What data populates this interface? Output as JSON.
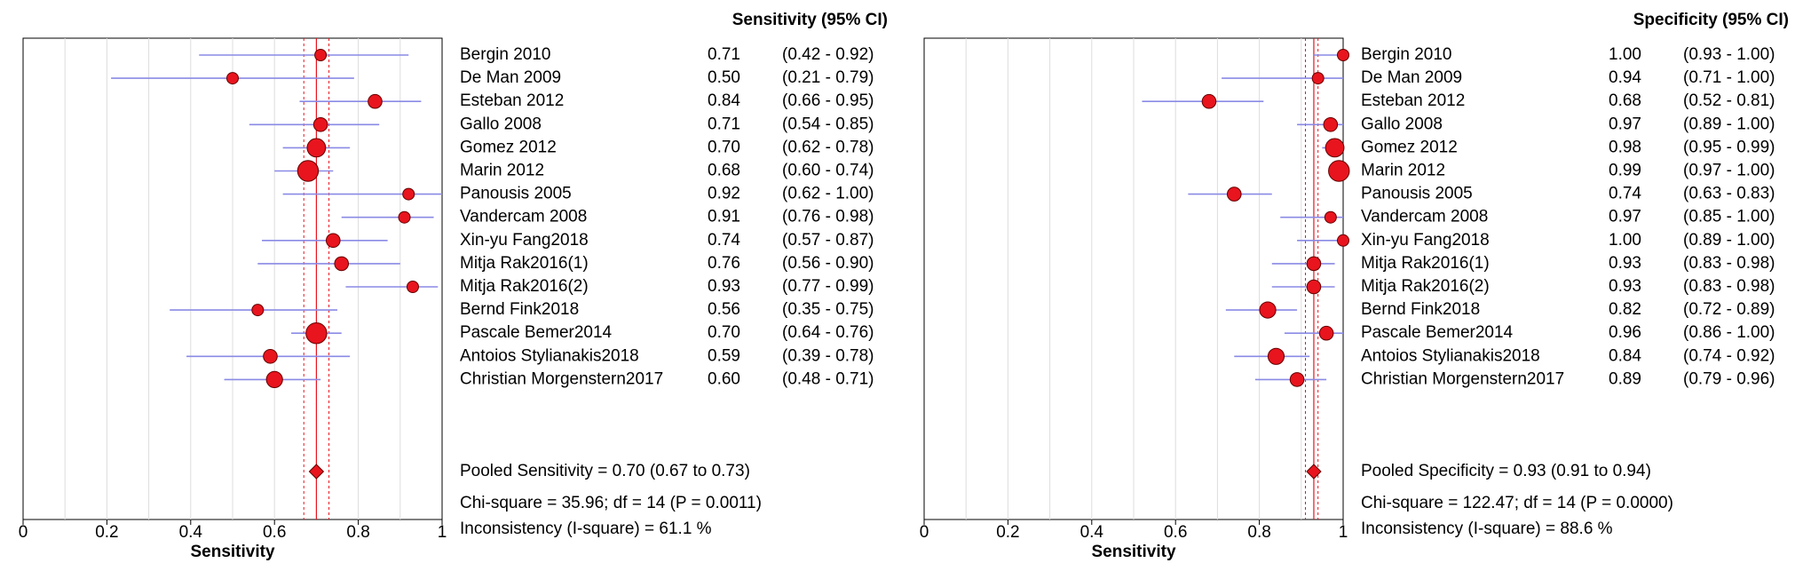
{
  "chart_data": [
    {
      "type": "forest",
      "title": "Sensitivity (95% CI)",
      "xlabel": "Sensitivity",
      "categories": [
        "Bergin 2010",
        "De Man 2009",
        "Esteban 2012",
        "Gallo 2008",
        "Gomez 2012",
        "Marin 2012",
        "Panousis 2005",
        "Vandercam 2008",
        "Xin-yu Fang2018",
        "Mitja Rak2016(1)",
        "Mitja Rak2016(2)",
        "Bernd Fink2018",
        "Pascale Bemer2014",
        "Antoios Stylianakis2018",
        "Christian Morgenstern2017"
      ],
      "values": [
        0.71,
        0.5,
        0.84,
        0.71,
        0.7,
        0.68,
        0.92,
        0.91,
        0.74,
        0.76,
        0.93,
        0.56,
        0.7,
        0.59,
        0.6
      ],
      "value_labels": [
        "0.71",
        "0.50",
        "0.84",
        "0.71",
        "0.70",
        "0.68",
        "0.92",
        "0.91",
        "0.74",
        "0.76",
        "0.93",
        "0.56",
        "0.70",
        "0.59",
        "0.60"
      ],
      "lower": [
        0.42,
        0.21,
        0.66,
        0.54,
        0.62,
        0.6,
        0.62,
        0.76,
        0.57,
        0.56,
        0.77,
        0.35,
        0.64,
        0.39,
        0.48
      ],
      "upper": [
        0.92,
        0.79,
        0.95,
        0.85,
        0.78,
        0.74,
        1.0,
        0.98,
        0.87,
        0.9,
        0.99,
        0.75,
        0.76,
        0.78,
        0.71
      ],
      "ci_labels": [
        "(0.42 - 0.92)",
        "(0.21 - 0.79)",
        "(0.66 - 0.95)",
        "(0.54 - 0.85)",
        "(0.62 - 0.78)",
        "(0.60 - 0.74)",
        "(0.62 - 1.00)",
        "(0.76 - 0.98)",
        "(0.57 - 0.87)",
        "(0.56 - 0.90)",
        "(0.77 - 0.99)",
        "(0.35 - 0.75)",
        "(0.64 - 0.76)",
        "(0.39 - 0.78)",
        "(0.48 - 0.71)"
      ],
      "sizes": [
        5,
        5,
        6,
        6,
        8,
        9,
        5,
        5,
        6,
        6,
        5,
        5,
        9,
        6,
        7
      ],
      "pooled": {
        "value": 0.7,
        "lower": 0.67,
        "upper": 0.73
      },
      "annotations": [
        "Pooled Sensitivity = 0.70 (0.67 to 0.73)",
        "Chi-square = 35.96; df =  14 (P = 0.0011)",
        "Inconsistency (I-square) = 61.1 %"
      ],
      "xlim": [
        0,
        1
      ],
      "xticks": [
        0,
        0.2,
        0.4,
        0.6,
        0.8,
        1
      ],
      "grid": true,
      "marker_color": "#e8141e",
      "ci_color": "#8a8ae6"
    },
    {
      "type": "forest",
      "title": "Specificity (95% CI)",
      "xlabel": "Sensitivity",
      "categories": [
        "Bergin 2010",
        "De Man 2009",
        "Esteban 2012",
        "Gallo 2008",
        "Gomez 2012",
        "Marin 2012",
        "Panousis 2005",
        "Vandercam 2008",
        "Xin-yu Fang2018",
        "Mitja Rak2016(1)",
        "Mitja Rak2016(2)",
        "Bernd Fink2018",
        "Pascale Bemer2014",
        "Antoios Stylianakis2018",
        "Christian Morgenstern2017"
      ],
      "values": [
        1.0,
        0.94,
        0.68,
        0.97,
        0.98,
        0.99,
        0.74,
        0.97,
        1.0,
        0.93,
        0.93,
        0.82,
        0.96,
        0.84,
        0.89
      ],
      "value_labels": [
        "1.00",
        "0.94",
        "0.68",
        "0.97",
        "0.98",
        "0.99",
        "0.74",
        "0.97",
        "1.00",
        "0.93",
        "0.93",
        "0.82",
        "0.96",
        "0.84",
        "0.89"
      ],
      "lower": [
        0.93,
        0.71,
        0.52,
        0.89,
        0.95,
        0.97,
        0.63,
        0.85,
        0.89,
        0.83,
        0.83,
        0.72,
        0.86,
        0.74,
        0.79
      ],
      "upper": [
        1.0,
        1.0,
        0.81,
        1.0,
        0.99,
        1.0,
        0.83,
        1.0,
        1.0,
        0.98,
        0.98,
        0.89,
        1.0,
        0.92,
        0.96
      ],
      "ci_labels": [
        "(0.93 - 1.00)",
        "(0.71 - 1.00)",
        "(0.52 - 0.81)",
        "(0.89 - 1.00)",
        "(0.95 - 0.99)",
        "(0.97 - 1.00)",
        "(0.63 - 0.83)",
        "(0.85 - 1.00)",
        "(0.89 - 1.00)",
        "(0.83 - 0.98)",
        "(0.83 - 0.98)",
        "(0.72 - 0.89)",
        "(0.86 - 1.00)",
        "(0.74 - 0.92)",
        "(0.79 - 0.96)"
      ],
      "sizes": [
        5,
        5,
        6,
        6,
        8,
        9,
        6,
        5,
        5,
        6,
        6,
        7,
        6,
        7,
        6
      ],
      "pooled": {
        "value": 0.93,
        "lower": 0.91,
        "upper": 0.94
      },
      "annotations": [
        "Pooled Specificity = 0.93 (0.91 to 0.94)",
        "Chi-square = 122.47; df =  14 (P = 0.0000)",
        "Inconsistency (I-square) = 88.6 %"
      ],
      "xlim": [
        0,
        1
      ],
      "xticks": [
        0,
        0.2,
        0.4,
        0.6,
        0.8,
        1
      ],
      "grid": true,
      "marker_color": "#e8141e",
      "ci_color": "#8a8ae6"
    }
  ]
}
